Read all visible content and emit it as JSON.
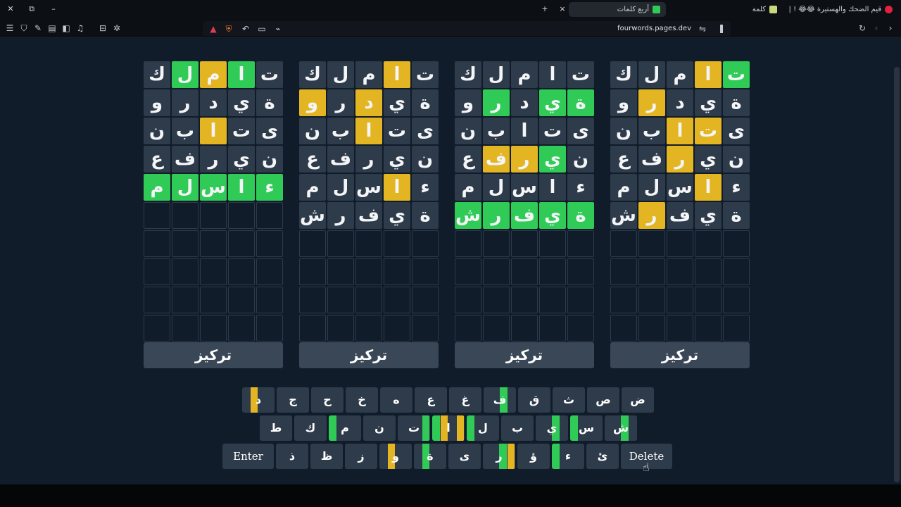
{
  "browser": {
    "tabs": [
      {
        "label": "قيم الضحك والهستيرة 😂😂 ! | YouTube",
        "active": false,
        "fav_color": "#e0223f"
      },
      {
        "label": "كلمة",
        "active": false,
        "fav_color": "#c9d97a"
      },
      {
        "label": "أربع كلمات",
        "active": true,
        "fav_color": "#2fcb56"
      }
    ],
    "url": "fourwords.pages.dev",
    "new_tab_glyph": "+",
    "close_glyph": "×"
  },
  "colors": {
    "green": "#2fcb56",
    "yellow": "#e4b522",
    "gray": "#2e3b4b"
  },
  "boards": [
    {
      "rows": [
        [
          [
            "ك",
            "n"
          ],
          [
            "ل",
            "g"
          ],
          [
            "م",
            "y"
          ],
          [
            "ا",
            "g"
          ],
          [
            "ت",
            "n"
          ]
        ],
        [
          [
            "و",
            "n"
          ],
          [
            "ر",
            "n"
          ],
          [
            "د",
            "n"
          ],
          [
            "ي",
            "n"
          ],
          [
            "ة",
            "n"
          ]
        ],
        [
          [
            "ن",
            "n"
          ],
          [
            "ب",
            "n"
          ],
          [
            "ا",
            "y"
          ],
          [
            "ت",
            "n"
          ],
          [
            "ى",
            "n"
          ]
        ],
        [
          [
            "ع",
            "n"
          ],
          [
            "ف",
            "n"
          ],
          [
            "ر",
            "n"
          ],
          [
            "ي",
            "n"
          ],
          [
            "ن",
            "n"
          ]
        ],
        [
          [
            "م",
            "g"
          ],
          [
            "ل",
            "g"
          ],
          [
            "س",
            "g"
          ],
          [
            "ا",
            "g"
          ],
          [
            "ء",
            "g"
          ]
        ]
      ],
      "focus_label": "تركيز"
    },
    {
      "rows": [
        [
          [
            "ك",
            "n"
          ],
          [
            "ل",
            "n"
          ],
          [
            "م",
            "n"
          ],
          [
            "ا",
            "y"
          ],
          [
            "ت",
            "n"
          ]
        ],
        [
          [
            "و",
            "y"
          ],
          [
            "ر",
            "n"
          ],
          [
            "د",
            "y"
          ],
          [
            "ي",
            "n"
          ],
          [
            "ة",
            "n"
          ]
        ],
        [
          [
            "ن",
            "n"
          ],
          [
            "ب",
            "n"
          ],
          [
            "ا",
            "y"
          ],
          [
            "ت",
            "n"
          ],
          [
            "ى",
            "n"
          ]
        ],
        [
          [
            "ع",
            "n"
          ],
          [
            "ف",
            "n"
          ],
          [
            "ر",
            "n"
          ],
          [
            "ي",
            "n"
          ],
          [
            "ن",
            "n"
          ]
        ],
        [
          [
            "م",
            "n"
          ],
          [
            "ل",
            "n"
          ],
          [
            "س",
            "n"
          ],
          [
            "ا",
            "y"
          ],
          [
            "ء",
            "n"
          ]
        ],
        [
          [
            "ش",
            "n"
          ],
          [
            "ر",
            "n"
          ],
          [
            "ف",
            "n"
          ],
          [
            "ي",
            "n"
          ],
          [
            "ة",
            "n"
          ]
        ]
      ],
      "focus_label": "تركيز"
    },
    {
      "rows": [
        [
          [
            "ك",
            "n"
          ],
          [
            "ل",
            "n"
          ],
          [
            "م",
            "n"
          ],
          [
            "ا",
            "n"
          ],
          [
            "ت",
            "n"
          ]
        ],
        [
          [
            "و",
            "n"
          ],
          [
            "ر",
            "g"
          ],
          [
            "د",
            "n"
          ],
          [
            "ي",
            "g"
          ],
          [
            "ة",
            "g"
          ]
        ],
        [
          [
            "ن",
            "n"
          ],
          [
            "ب",
            "n"
          ],
          [
            "ا",
            "n"
          ],
          [
            "ت",
            "n"
          ],
          [
            "ى",
            "n"
          ]
        ],
        [
          [
            "ع",
            "n"
          ],
          [
            "ف",
            "y"
          ],
          [
            "ر",
            "y"
          ],
          [
            "ي",
            "g"
          ],
          [
            "ن",
            "n"
          ]
        ],
        [
          [
            "م",
            "n"
          ],
          [
            "ل",
            "n"
          ],
          [
            "س",
            "n"
          ],
          [
            "ا",
            "n"
          ],
          [
            "ء",
            "n"
          ]
        ],
        [
          [
            "ش",
            "g"
          ],
          [
            "ر",
            "g"
          ],
          [
            "ف",
            "g"
          ],
          [
            "ي",
            "g"
          ],
          [
            "ة",
            "g"
          ]
        ]
      ],
      "focus_label": "تركيز"
    },
    {
      "rows": [
        [
          [
            "ك",
            "n"
          ],
          [
            "ل",
            "n"
          ],
          [
            "م",
            "n"
          ],
          [
            "ا",
            "y"
          ],
          [
            "ت",
            "g"
          ]
        ],
        [
          [
            "و",
            "n"
          ],
          [
            "ر",
            "y"
          ],
          [
            "د",
            "n"
          ],
          [
            "ي",
            "n"
          ],
          [
            "ة",
            "n"
          ]
        ],
        [
          [
            "ن",
            "n"
          ],
          [
            "ب",
            "n"
          ],
          [
            "ا",
            "y"
          ],
          [
            "ت",
            "y"
          ],
          [
            "ى",
            "n"
          ]
        ],
        [
          [
            "ع",
            "n"
          ],
          [
            "ف",
            "n"
          ],
          [
            "ر",
            "y"
          ],
          [
            "ي",
            "n"
          ],
          [
            "ن",
            "n"
          ]
        ],
        [
          [
            "م",
            "n"
          ],
          [
            "ل",
            "n"
          ],
          [
            "س",
            "n"
          ],
          [
            "ا",
            "y"
          ],
          [
            "ء",
            "n"
          ]
        ],
        [
          [
            "ش",
            "n"
          ],
          [
            "ر",
            "y"
          ],
          [
            "ف",
            "n"
          ],
          [
            "ي",
            "n"
          ],
          [
            "ة",
            "n"
          ]
        ]
      ],
      "focus_label": "تركيز"
    }
  ],
  "keyboard": {
    "rows": [
      [
        {
          "label": "ض",
          "marks": []
        },
        {
          "label": "ص",
          "marks": []
        },
        {
          "label": "ث",
          "marks": []
        },
        {
          "label": "ق",
          "marks": []
        },
        {
          "label": "ف",
          "marks": [
            "n",
            "n",
            "g",
            "n"
          ]
        },
        {
          "label": "غ",
          "marks": []
        },
        {
          "label": "ع",
          "marks": []
        },
        {
          "label": "ه",
          "marks": []
        },
        {
          "label": "خ",
          "marks": []
        },
        {
          "label": "ح",
          "marks": []
        },
        {
          "label": "ج",
          "marks": []
        },
        {
          "label": "د",
          "marks": [
            "n",
            "y",
            "n",
            "n"
          ]
        }
      ],
      [
        {
          "label": "ش",
          "marks": [
            "n",
            "n",
            "g",
            "n"
          ]
        },
        {
          "label": "س",
          "marks": [
            "g",
            "n",
            "n",
            "n"
          ]
        },
        {
          "label": "ي",
          "marks": [
            "n",
            "n",
            "g",
            "n"
          ]
        },
        {
          "label": "ب",
          "marks": []
        },
        {
          "label": "ل",
          "marks": [
            "g",
            "n",
            "n",
            "n"
          ]
        },
        {
          "label": "ا",
          "marks": [
            "g",
            "y",
            "n",
            "y"
          ]
        },
        {
          "label": "ت",
          "marks": [
            "n",
            "n",
            "n",
            "g"
          ]
        },
        {
          "label": "ن",
          "marks": []
        },
        {
          "label": "م",
          "marks": [
            "g",
            "n",
            "n",
            "n"
          ]
        },
        {
          "label": "ك",
          "marks": []
        },
        {
          "label": "ط",
          "marks": []
        }
      ],
      [
        {
          "label": "Delete",
          "marks": [],
          "wide": true
        },
        {
          "label": "ئ",
          "marks": []
        },
        {
          "label": "ء",
          "marks": [
            "g",
            "n",
            "n",
            "n"
          ]
        },
        {
          "label": "ؤ",
          "marks": []
        },
        {
          "label": "ر",
          "marks": [
            "n",
            "n",
            "g",
            "y"
          ]
        },
        {
          "label": "ى",
          "marks": []
        },
        {
          "label": "ة",
          "marks": [
            "n",
            "g",
            "n",
            "n"
          ]
        },
        {
          "label": "و",
          "marks": [
            "n",
            "y",
            "n",
            "n"
          ]
        },
        {
          "label": "ز",
          "marks": []
        },
        {
          "label": "ظ",
          "marks": []
        },
        {
          "label": "ذ",
          "marks": []
        },
        {
          "label": "Enter",
          "marks": [],
          "wide": true
        }
      ]
    ]
  }
}
